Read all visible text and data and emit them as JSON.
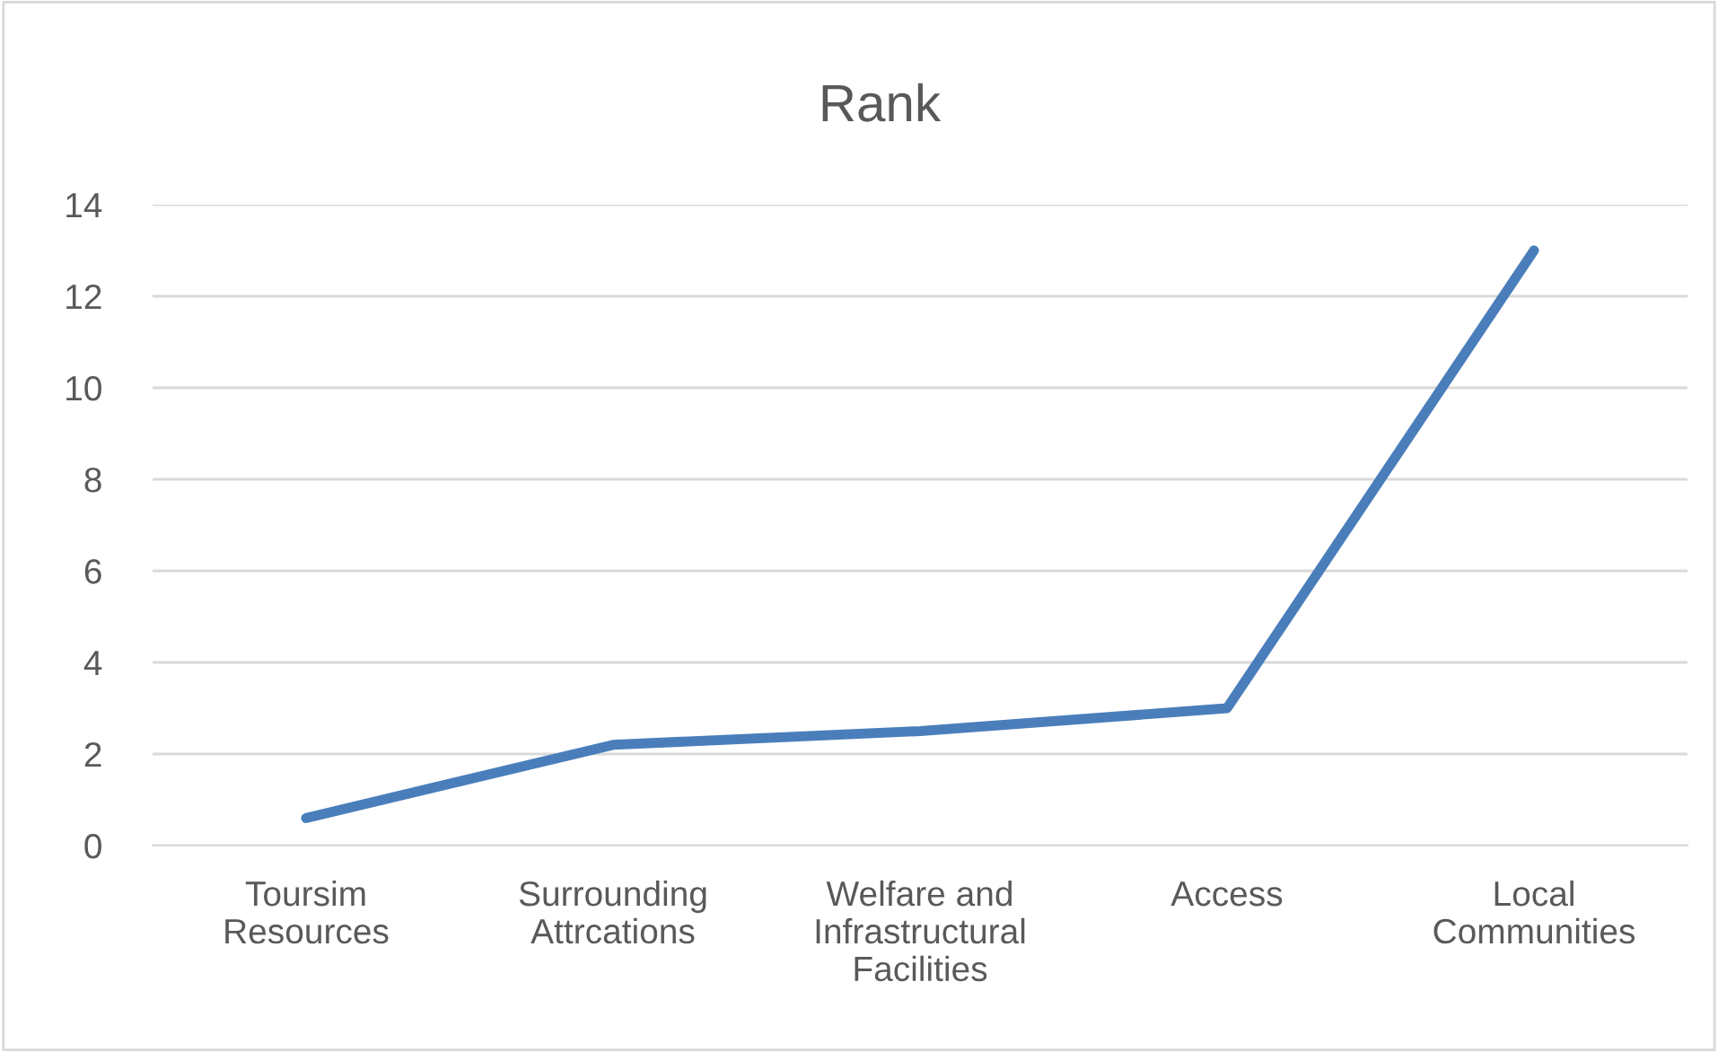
{
  "chart_data": {
    "type": "line",
    "title": "Rank",
    "categories": [
      "Toursim Resources",
      "Surrounding Attrcations",
      "Welfare and Infrastructural Facilities",
      "Access",
      "Local Communities"
    ],
    "series": [
      {
        "color": "#4a7ebb",
        "values": [
          0.6,
          2.2,
          2.5,
          3.0,
          13.0
        ]
      }
    ],
    "ylim": [
      0,
      14
    ],
    "yticks": [
      0,
      2,
      4,
      6,
      8,
      10,
      12,
      14
    ],
    "grid": "y",
    "legend": false,
    "marker": "none",
    "line_style": "solid"
  }
}
